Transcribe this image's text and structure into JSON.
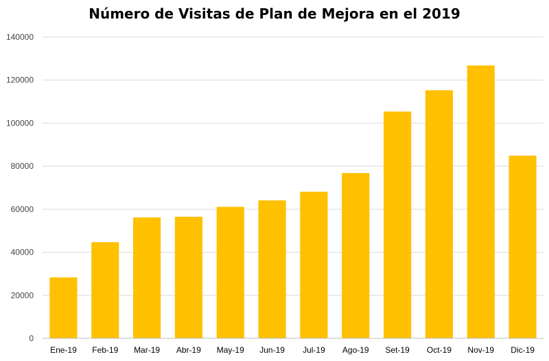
{
  "chart_data": {
    "type": "bar",
    "title": "Número de Visitas de Plan de Mejora en el 2019",
    "xlabel": "",
    "ylabel": "",
    "categories": [
      "Ene-19",
      "Feb-19",
      "Mar-19",
      "Abr-19",
      "May-19",
      "Jun-19",
      "Jul-19",
      "Ago-19",
      "Set-19",
      "Oct-19",
      "Nov-19",
      "Dic-19"
    ],
    "values": [
      28300,
      44700,
      56200,
      56500,
      61100,
      64100,
      68100,
      76800,
      105400,
      115300,
      126800,
      84900
    ],
    "ylim": [
      0,
      140000
    ],
    "yticks": [
      "0",
      "20000",
      "40000",
      "60000",
      "80000",
      "100000",
      "120000",
      "140000"
    ],
    "grid": true,
    "legend": "none",
    "bar_color": "#FFC000",
    "grid_color": "#D9D9D9",
    "axis_color": "#BFBFBF"
  }
}
